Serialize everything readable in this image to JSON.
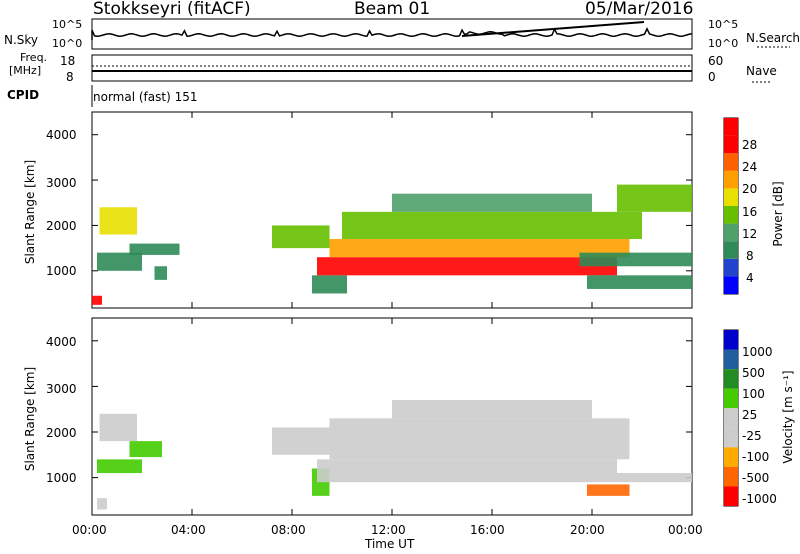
{
  "header": {
    "station": "Stokkseyri (fitACF)",
    "beam": "Beam 01",
    "date": "05/Mar/2016"
  },
  "panels": {
    "nsky": {
      "label": "N.Sky",
      "ticks": [
        "10^5",
        "10^0"
      ],
      "right_ticks": [
        "10^5",
        "10^0"
      ],
      "right_label": "N.Search"
    },
    "freq": {
      "label_line1": "Freq.",
      "label_line2": "[MHz]",
      "ticks": [
        "18",
        "8"
      ],
      "right_ticks": [
        "60",
        "0"
      ],
      "right_label": "Nave"
    },
    "cpid": {
      "label": "CPID",
      "text": "normal (fast) 151"
    }
  },
  "colors": {
    "power": [
      "#0000ff",
      "#2244cc",
      "#2e8b57",
      "#4fa06a",
      "#66c000",
      "#e8e000",
      "#ffa000",
      "#ff6000",
      "#ff0000",
      "#ff0000"
    ],
    "velocity": [
      "#ff0000",
      "#ff6600",
      "#ffaa00",
      "#cccccc",
      "#cccccc",
      "#44cc00",
      "#228b22",
      "#1f5fa0",
      "#0000cc"
    ]
  },
  "chart_data": [
    {
      "type": "heatmap",
      "name": "power",
      "ylabel": "Slant Range [km]",
      "yticks": [
        1000,
        2000,
        3000,
        4000
      ],
      "ylim": [
        180,
        4500
      ],
      "xlim": [
        0,
        24
      ],
      "colorbar": {
        "label": "Power [dB]",
        "ticks": [
          "4",
          "8",
          "12",
          "16",
          "20",
          "24",
          "28"
        ],
        "range": [
          0,
          30
        ]
      },
      "bands": [
        {
          "x": [
            0.3,
            1.8
          ],
          "y": [
            1800,
            2400
          ],
          "value": 16
        },
        {
          "x": [
            0.2,
            2.0
          ],
          "y": [
            1000,
            1400
          ],
          "value": 6
        },
        {
          "x": [
            1.5,
            3.5
          ],
          "y": [
            1350,
            1600
          ],
          "value": 6
        },
        {
          "x": [
            2.5,
            3.0
          ],
          "y": [
            800,
            1100
          ],
          "value": 8
        },
        {
          "x": [
            0,
            0.4
          ],
          "y": [
            250,
            450
          ],
          "value": 24
        },
        {
          "x": [
            7.2,
            9.5
          ],
          "y": [
            1500,
            2000
          ],
          "value": 12
        },
        {
          "x": [
            8.8,
            10.2
          ],
          "y": [
            500,
            900
          ],
          "value": 8
        },
        {
          "x": [
            9.0,
            21.0
          ],
          "y": [
            900,
            1300
          ],
          "value": 28
        },
        {
          "x": [
            9.5,
            21.5
          ],
          "y": [
            1300,
            1700
          ],
          "value": 18
        },
        {
          "x": [
            10.0,
            22.0
          ],
          "y": [
            1700,
            2300
          ],
          "value": 13
        },
        {
          "x": [
            12.0,
            20.0
          ],
          "y": [
            2300,
            2700
          ],
          "value": 10
        },
        {
          "x": [
            19.5,
            24.0
          ],
          "y": [
            1100,
            1400
          ],
          "value": 8
        },
        {
          "x": [
            19.8,
            24.0
          ],
          "y": [
            600,
            900
          ],
          "value": 8
        },
        {
          "x": [
            21.0,
            24.0
          ],
          "y": [
            2300,
            2900
          ],
          "value": 12
        }
      ]
    },
    {
      "type": "heatmap",
      "name": "velocity",
      "ylabel": "Slant Range [km]",
      "xlabel": "Time UT",
      "xticks": [
        "00:00",
        "04:00",
        "08:00",
        "12:00",
        "16:00",
        "20:00",
        "00:00"
      ],
      "yticks": [
        1000,
        2000,
        3000,
        4000
      ],
      "ylim": [
        180,
        4500
      ],
      "xlim": [
        0,
        24
      ],
      "colorbar": {
        "label": "Velocity [m s⁻¹]",
        "ticks": [
          "1000",
          "500",
          "100",
          "25",
          "-25",
          "-100",
          "-500",
          "-1000"
        ]
      },
      "bands": [
        {
          "x": [
            0.3,
            1.8
          ],
          "y": [
            1800,
            2400
          ],
          "value": 0
        },
        {
          "x": [
            0.2,
            2.0
          ],
          "y": [
            1100,
            1400
          ],
          "value": 100
        },
        {
          "x": [
            1.5,
            2.8
          ],
          "y": [
            1450,
            1800
          ],
          "value": 100
        },
        {
          "x": [
            7.2,
            9.5
          ],
          "y": [
            1500,
            2100
          ],
          "value": 0
        },
        {
          "x": [
            8.8,
            9.5
          ],
          "y": [
            600,
            1200
          ],
          "value": 100
        },
        {
          "x": [
            9.0,
            21.0
          ],
          "y": [
            900,
            1400
          ],
          "value": 0
        },
        {
          "x": [
            9.5,
            21.5
          ],
          "y": [
            1400,
            2300
          ],
          "value": 0
        },
        {
          "x": [
            12.0,
            20.0
          ],
          "y": [
            2300,
            2700
          ],
          "value": 0
        },
        {
          "x": [
            19.8,
            21.5
          ],
          "y": [
            600,
            850
          ],
          "value": -500
        },
        {
          "x": [
            21.0,
            24.0
          ],
          "y": [
            900,
            1100
          ],
          "value": 0
        },
        {
          "x": [
            0.2,
            0.6
          ],
          "y": [
            300,
            550
          ],
          "value": 0
        }
      ]
    }
  ]
}
